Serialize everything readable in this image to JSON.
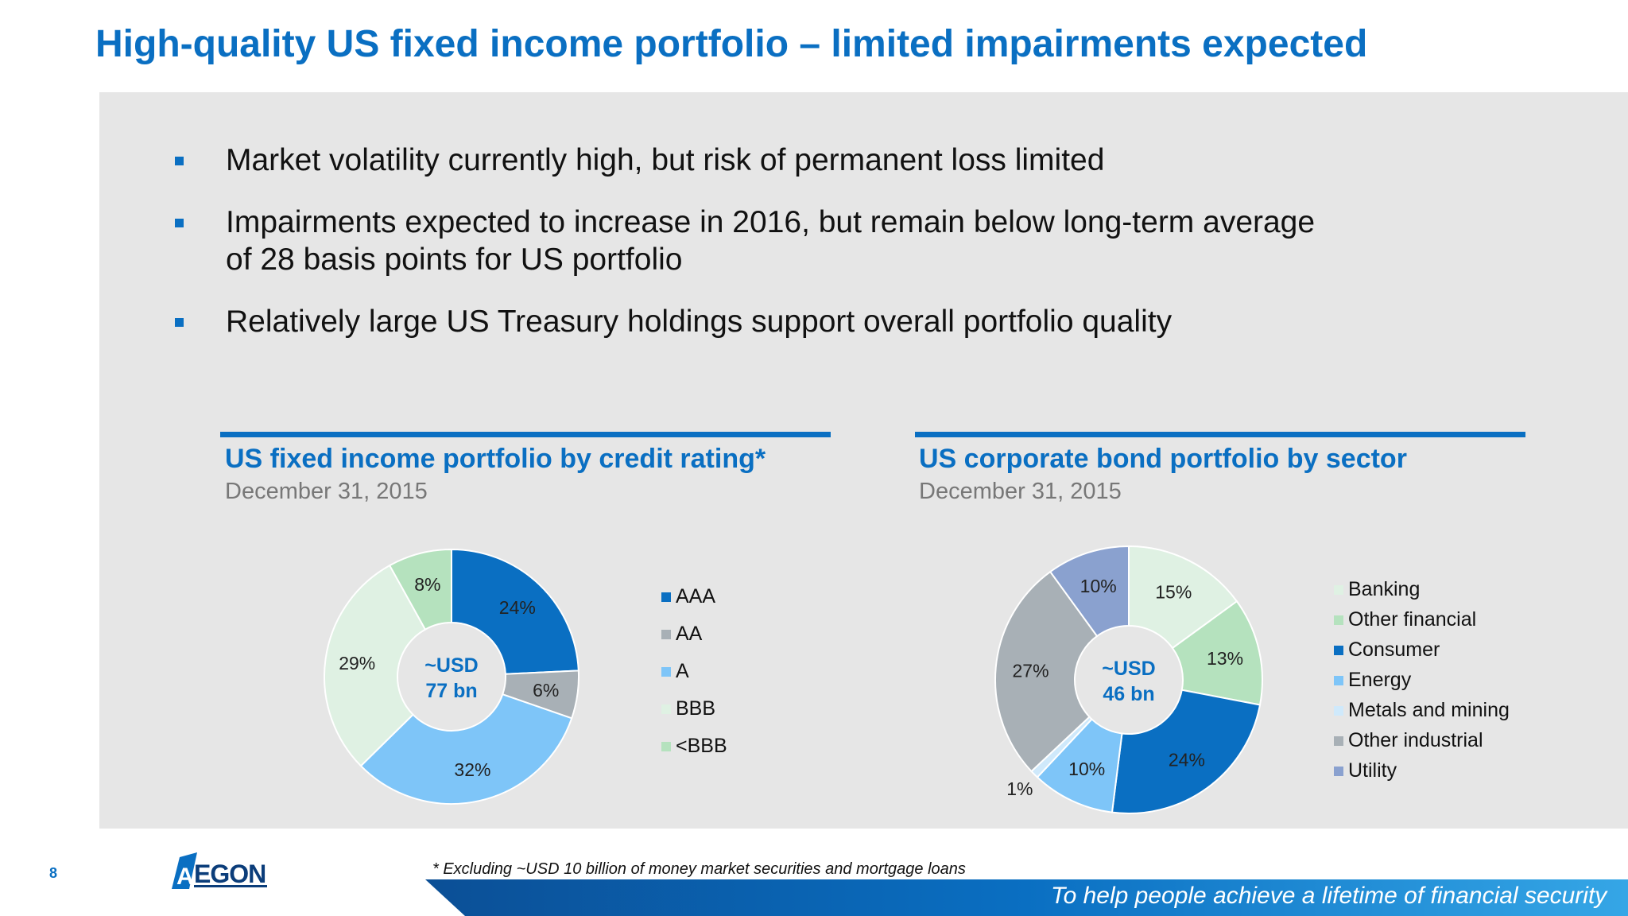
{
  "slide": {
    "title": "High-quality US fixed income portfolio – limited impairments expected",
    "bullets": [
      {
        "line1": "Market volatility currently high, but risk of permanent loss limited",
        "line2": ""
      },
      {
        "line1": "Impairments expected to increase in 2016, but remain below long-term average",
        "line2": "of 28 basis points for US portfolio"
      },
      {
        "line1": "Relatively large US Treasury holdings support overall portfolio quality",
        "line2": ""
      }
    ],
    "footnote": "* Excluding ~USD 10 billion of money market securities and mortgage loans",
    "page_number": "8",
    "logo_text": "AEGON",
    "tagline": "To help people achieve a lifetime of financial security"
  },
  "colors": {
    "accent": "#0a6fc2",
    "panel": "#e6e6e6"
  },
  "icons": {
    "bullet": "blue-square-bullet-icon",
    "logo": "aegon-logo-icon"
  },
  "chart_data": [
    {
      "type": "pie",
      "title": "US fixed income portfolio by credit rating*",
      "subtitle": "December 31, 2015",
      "center_label": [
        "~USD",
        "77 bn"
      ],
      "categories": [
        "AAA",
        "AA",
        "A",
        "BBB",
        "<BBB"
      ],
      "values": [
        24,
        6,
        32,
        29,
        8
      ],
      "labels": [
        "24%",
        "6%",
        "32%",
        "29%",
        "8%"
      ],
      "colors": [
        "#0a6fc2",
        "#a8b0b6",
        "#7ec5f8",
        "#dff1e3",
        "#b5e2be"
      ],
      "legend_position": "right"
    },
    {
      "type": "pie",
      "title": "US corporate bond portfolio by sector",
      "subtitle": "December 31, 2015",
      "center_label": [
        "~USD",
        "46 bn"
      ],
      "categories": [
        "Banking",
        "Other financial",
        "Consumer",
        "Energy",
        "Metals and mining",
        "Other industrial",
        "Utility"
      ],
      "values": [
        15,
        13,
        24,
        10,
        1,
        27,
        10
      ],
      "labels": [
        "15%",
        "13%",
        "24%",
        "10%",
        "1%",
        "27%",
        "10%"
      ],
      "colors": [
        "#dff1e3",
        "#b5e2be",
        "#0a6fc2",
        "#7ec5f8",
        "#cfe9fb",
        "#a8b0b6",
        "#8aa1cf"
      ],
      "legend_position": "right"
    }
  ]
}
